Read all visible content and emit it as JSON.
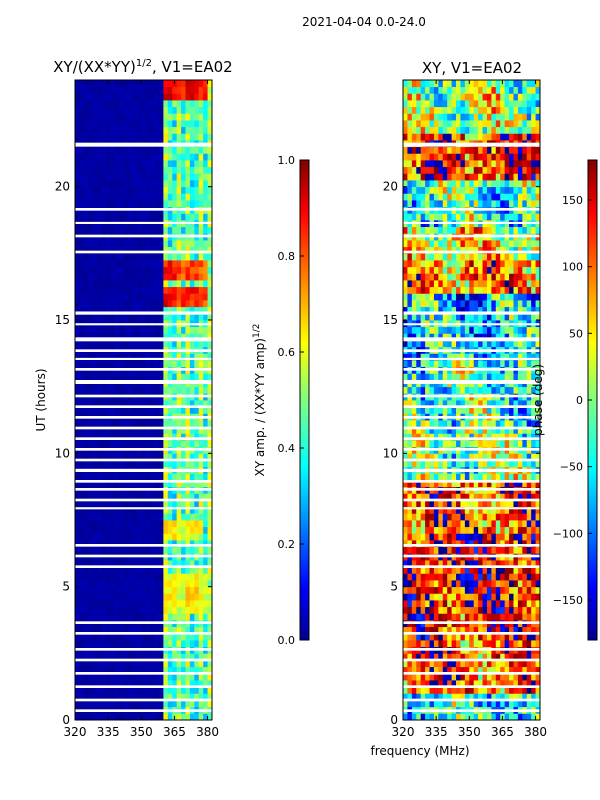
{
  "suptitle": "2021-04-04 0.0-24.0",
  "xlabel_shared": "frequency (MHz)",
  "chart_data": [
    {
      "type": "heatmap",
      "title": "XY/(XX*YY)",
      "title_superscript": "1/2",
      "title_suffix": ", V1=EA02",
      "xlabel": "",
      "ylabel": "UT (hours)",
      "xlim": [
        320,
        382
      ],
      "ylim": [
        0,
        24
      ],
      "xticks": [
        320,
        335,
        350,
        365,
        380
      ],
      "xtick_labels": [
        "320",
        "335",
        "350",
        "365",
        "380"
      ],
      "yticks": [
        0,
        5,
        10,
        15,
        20
      ],
      "ytick_labels": [
        "0",
        "5",
        "10",
        "15",
        "20"
      ],
      "colormap": "jet",
      "colorbar": {
        "label": "XY amp. / (XX*YY amp)",
        "label_superscript": "1/2",
        "vmin": 0.0,
        "vmax": 1.0,
        "ticks": [
          0.0,
          0.2,
          0.4,
          0.6,
          0.8,
          1.0
        ],
        "tick_labels": [
          "0.0",
          "0.2",
          "0.4",
          "0.6",
          "0.8",
          "1.0"
        ]
      },
      "background_value": 0.02,
      "active_band": {
        "freq": [
          360,
          381
        ],
        "typical_value": 0.45
      },
      "bright_patches": [
        {
          "freq": [
            360,
            365
          ],
          "ut": [
            23.3,
            24.0
          ],
          "value": 0.9
        },
        {
          "freq": [
            366,
            370
          ],
          "ut": [
            23.3,
            24.0
          ],
          "value": 0.8
        },
        {
          "freq": [
            371,
            375
          ],
          "ut": [
            23.3,
            24.0
          ],
          "value": 0.88
        },
        {
          "freq": [
            376,
            380
          ],
          "ut": [
            23.3,
            24.0
          ],
          "value": 0.85
        },
        {
          "freq": [
            360,
            365
          ],
          "ut": [
            16.4,
            17.3
          ],
          "value": 0.85
        },
        {
          "freq": [
            366,
            370
          ],
          "ut": [
            16.4,
            17.3
          ],
          "value": 0.8
        },
        {
          "freq": [
            371,
            375
          ],
          "ut": [
            16.4,
            17.3
          ],
          "value": 0.82
        },
        {
          "freq": [
            376,
            380
          ],
          "ut": [
            16.4,
            17.3
          ],
          "value": 0.78
        },
        {
          "freq": [
            360,
            365
          ],
          "ut": [
            15.6,
            16.3
          ],
          "value": 0.88
        },
        {
          "freq": [
            366,
            370
          ],
          "ut": [
            15.6,
            16.3
          ],
          "value": 0.82
        },
        {
          "freq": [
            371,
            375
          ],
          "ut": [
            15.6,
            16.3
          ],
          "value": 0.85
        },
        {
          "freq": [
            376,
            380
          ],
          "ut": [
            15.6,
            16.3
          ],
          "value": 0.8
        },
        {
          "freq": [
            360,
            365
          ],
          "ut": [
            6.8,
            7.5
          ],
          "value": 0.65
        },
        {
          "freq": [
            366,
            370
          ],
          "ut": [
            6.8,
            7.5
          ],
          "value": 0.6
        },
        {
          "freq": [
            371,
            375
          ],
          "ut": [
            6.8,
            7.5
          ],
          "value": 0.62
        },
        {
          "freq": [
            360,
            365
          ],
          "ut": [
            4.0,
            5.5
          ],
          "value": 0.62
        },
        {
          "freq": [
            366,
            370
          ],
          "ut": [
            4.0,
            5.5
          ],
          "value": 0.58
        },
        {
          "freq": [
            371,
            375
          ],
          "ut": [
            4.0,
            5.5
          ],
          "value": 0.65
        },
        {
          "freq": [
            376,
            380
          ],
          "ut": [
            4.0,
            5.5
          ],
          "value": 0.6
        }
      ],
      "flagged_ut_ranges": [
        [
          21.5,
          21.65
        ],
        [
          19.1,
          19.2
        ],
        [
          18.6,
          18.68
        ],
        [
          18.1,
          18.2
        ],
        [
          17.5,
          17.6
        ],
        [
          15.2,
          15.32
        ],
        [
          14.8,
          14.88
        ],
        [
          14.2,
          14.35
        ],
        [
          13.8,
          13.9
        ],
        [
          13.5,
          13.58
        ],
        [
          13.1,
          13.2
        ],
        [
          12.6,
          12.75
        ],
        [
          12.1,
          12.2
        ],
        [
          11.7,
          11.8
        ],
        [
          11.3,
          11.4
        ],
        [
          10.9,
          11.0
        ],
        [
          10.5,
          10.6
        ],
        [
          10.1,
          10.2
        ],
        [
          9.7,
          9.8
        ],
        [
          9.3,
          9.42
        ],
        [
          8.9,
          9.0
        ],
        [
          8.6,
          8.7
        ],
        [
          8.2,
          8.3
        ],
        [
          7.9,
          7.98
        ],
        [
          6.5,
          6.6
        ],
        [
          6.1,
          6.2
        ],
        [
          5.7,
          5.8
        ],
        [
          3.6,
          3.7
        ],
        [
          3.2,
          3.3
        ],
        [
          2.6,
          2.7
        ],
        [
          2.2,
          2.3
        ],
        [
          1.7,
          1.8
        ],
        [
          1.2,
          1.3
        ],
        [
          0.7,
          0.8
        ],
        [
          0.3,
          0.4
        ]
      ]
    },
    {
      "type": "heatmap",
      "title": "XY, V1=EA02",
      "xlabel": "frequency (MHz)",
      "ylabel": "",
      "xlim": [
        320,
        382
      ],
      "ylim": [
        0,
        24
      ],
      "xticks": [
        320,
        335,
        350,
        365,
        380
      ],
      "xtick_labels": [
        "320",
        "335",
        "350",
        "365",
        "380"
      ],
      "yticks": [
        0,
        5,
        10,
        15,
        20
      ],
      "ytick_labels": [
        "0",
        "5",
        "10",
        "15",
        "20"
      ],
      "colormap": "jet",
      "colorbar": {
        "label": "phase (deg)",
        "vmin": -180,
        "vmax": 180,
        "ticks": [
          -150,
          -100,
          -50,
          0,
          50,
          100,
          150
        ],
        "tick_labels": [
          "−150",
          "−100",
          "−50",
          "0",
          "50",
          "100",
          "150"
        ]
      },
      "phase_bands": [
        {
          "ut": [
            22.0,
            24.0
          ],
          "value": 10
        },
        {
          "ut": [
            20.2,
            22.0
          ],
          "value": 120
        },
        {
          "ut": [
            18.6,
            20.2
          ],
          "value": -20
        },
        {
          "ut": [
            17.2,
            18.6
          ],
          "value": 40
        },
        {
          "ut": [
            16.0,
            17.2
          ],
          "value": 90
        },
        {
          "ut": [
            13.5,
            16.0
          ],
          "value": -60
        },
        {
          "ut": [
            11.0,
            13.5
          ],
          "value": -20
        },
        {
          "ut": [
            9.0,
            11.0
          ],
          "value": 0
        },
        {
          "ut": [
            7.0,
            9.0
          ],
          "value": 110
        },
        {
          "ut": [
            5.0,
            7.0
          ],
          "value": 140
        },
        {
          "ut": [
            3.0,
            5.0
          ],
          "value": 130
        },
        {
          "ut": [
            1.0,
            3.0
          ],
          "value": 100
        },
        {
          "ut": [
            0.0,
            1.0
          ],
          "value": -40
        }
      ],
      "flagged_ut_ranges": [
        [
          21.5,
          21.65
        ],
        [
          19.1,
          19.2
        ],
        [
          18.6,
          18.68
        ],
        [
          18.1,
          18.2
        ],
        [
          17.5,
          17.6
        ],
        [
          15.2,
          15.32
        ],
        [
          14.8,
          14.88
        ],
        [
          14.2,
          14.35
        ],
        [
          13.8,
          13.9
        ],
        [
          13.5,
          13.58
        ],
        [
          13.1,
          13.2
        ],
        [
          12.6,
          12.75
        ],
        [
          12.1,
          12.2
        ],
        [
          11.7,
          11.8
        ],
        [
          11.3,
          11.4
        ],
        [
          10.9,
          11.0
        ],
        [
          10.5,
          10.6
        ],
        [
          10.1,
          10.2
        ],
        [
          9.7,
          9.8
        ],
        [
          9.3,
          9.42
        ],
        [
          8.9,
          9.0
        ],
        [
          8.6,
          8.7
        ],
        [
          8.2,
          8.3
        ],
        [
          7.9,
          7.98
        ],
        [
          6.5,
          6.6
        ],
        [
          6.1,
          6.2
        ],
        [
          5.7,
          5.8
        ],
        [
          3.6,
          3.7
        ],
        [
          3.2,
          3.3
        ],
        [
          2.6,
          2.7
        ],
        [
          2.2,
          2.3
        ],
        [
          1.7,
          1.8
        ],
        [
          1.2,
          1.3
        ],
        [
          0.7,
          0.8
        ],
        [
          0.3,
          0.4
        ]
      ]
    }
  ]
}
